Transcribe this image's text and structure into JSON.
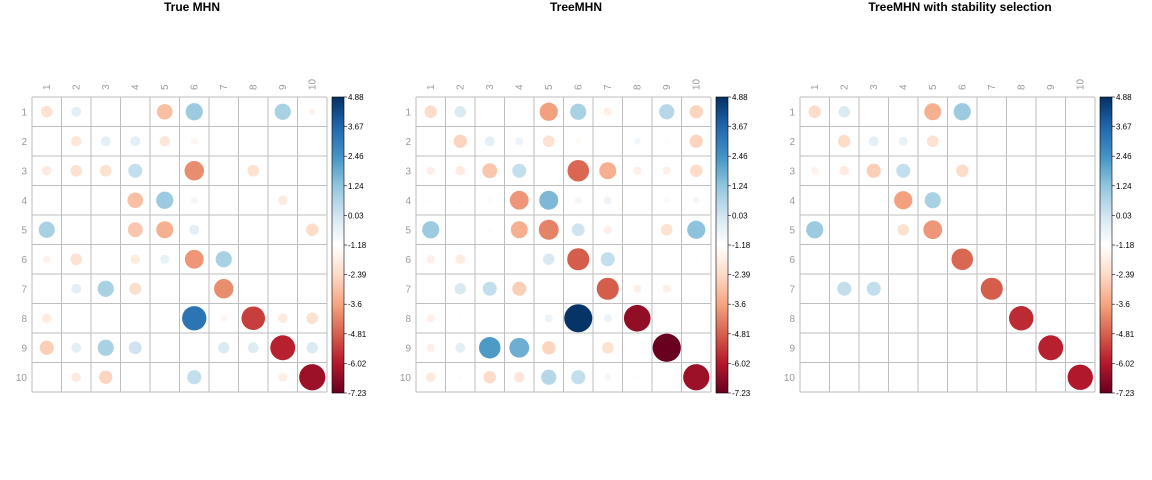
{
  "chart_data": [
    {
      "type": "heatmap",
      "subtype": "correlation-circle-plot",
      "title": "True MHN",
      "row_labels": [
        "1",
        "2",
        "3",
        "4",
        "5",
        "6",
        "7",
        "8",
        "9",
        "10"
      ],
      "col_labels": [
        "1",
        "2",
        "3",
        "4",
        "5",
        "6",
        "7",
        "8",
        "9",
        "10"
      ],
      "colorbar_ticks": [
        "4.88",
        "3.67",
        "2.46",
        "1.24",
        "0.03",
        "-1.18",
        "-2.39",
        "-3.6",
        "-4.81",
        "-6.02",
        "-7.23"
      ],
      "value_range": [
        -7.23,
        4.88
      ],
      "values": [
        [
          -1.2,
          0.6,
          0,
          0,
          -2.2,
          1.8,
          0,
          0,
          1.6,
          -0.4
        ],
        [
          0,
          -1.0,
          0.6,
          0.6,
          -1.0,
          -0.4,
          0,
          0,
          0,
          0
        ],
        [
          -0.8,
          -1.2,
          -1.2,
          1.2,
          0,
          -3.4,
          0,
          -1.2,
          0,
          0
        ],
        [
          0,
          0,
          0,
          -2.2,
          1.8,
          0.3,
          0,
          0,
          -0.8,
          0
        ],
        [
          1.6,
          0,
          0,
          -2.0,
          -2.6,
          0.6,
          0,
          0,
          0,
          -1.4
        ],
        [
          -0.5,
          -1.2,
          0,
          -0.8,
          0.5,
          -3.2,
          1.6,
          0,
          0,
          0
        ],
        [
          0,
          0.6,
          1.6,
          -1.3,
          0,
          0,
          -3.4,
          0,
          0,
          0
        ],
        [
          -0.8,
          0,
          0,
          0,
          0,
          3.6,
          -0.4,
          -5.0,
          -0.8,
          -1.2
        ],
        [
          -1.8,
          0.6,
          1.6,
          1.0,
          0,
          0,
          0.8,
          0.7,
          -5.6,
          0.8
        ],
        [
          0,
          -0.8,
          -1.6,
          0,
          0,
          1.2,
          0,
          0,
          -0.7,
          -6.2
        ]
      ]
    },
    {
      "type": "heatmap",
      "subtype": "correlation-circle-plot",
      "title": "TreeMHN",
      "row_labels": [
        "1",
        "2",
        "3",
        "4",
        "5",
        "6",
        "7",
        "8",
        "9",
        "10"
      ],
      "col_labels": [
        "1",
        "2",
        "3",
        "4",
        "5",
        "6",
        "7",
        "8",
        "9",
        "10"
      ],
      "colorbar_ticks": [
        "4.88",
        "3.67",
        "2.46",
        "1.24",
        "0.03",
        "-1.18",
        "-2.39",
        "-3.6",
        "-4.81",
        "-6.02",
        "-7.23"
      ],
      "value_range": [
        -7.23,
        4.88
      ],
      "values": [
        [
          -1.4,
          0.8,
          -0.1,
          0,
          -3.0,
          1.6,
          -0.6,
          -0.1,
          1.4,
          -1.6
        ],
        [
          0,
          -1.6,
          0.6,
          0.4,
          -1.2,
          -0.3,
          0,
          0.3,
          0.1,
          -1.6
        ],
        [
          -0.6,
          -0.8,
          -2.0,
          1.2,
          0,
          -4.2,
          -2.6,
          -0.6,
          -0.6,
          -1.4
        ],
        [
          0.1,
          0.1,
          -0.2,
          -3.2,
          2.2,
          0.3,
          0.4,
          0,
          -0.3,
          0.3
        ],
        [
          1.8,
          0,
          0.1,
          -2.6,
          -3.6,
          1.0,
          -0.6,
          -0.1,
          -1.2,
          2.0
        ],
        [
          -0.6,
          -0.8,
          0,
          -0.1,
          0.8,
          -4.4,
          1.2,
          0,
          0,
          0.1
        ],
        [
          0,
          0.8,
          1.2,
          -1.8,
          0,
          0,
          -4.4,
          -0.6,
          -0.6,
          0
        ],
        [
          -0.6,
          -0.1,
          0,
          0,
          0.4,
          4.8,
          0.4,
          -6.4,
          0,
          0
        ],
        [
          -0.6,
          0.6,
          2.8,
          2.4,
          -1.6,
          0,
          -1.2,
          0,
          -7.2,
          0
        ],
        [
          -0.8,
          0.1,
          -1.4,
          -1.0,
          1.4,
          1.2,
          0.3,
          0.1,
          0,
          -6.2
        ]
      ]
    },
    {
      "type": "heatmap",
      "subtype": "correlation-circle-plot",
      "title": "TreeMHN with stability selection",
      "row_labels": [
        "1",
        "2",
        "3",
        "4",
        "5",
        "6",
        "7",
        "8",
        "9",
        "10"
      ],
      "col_labels": [
        "1",
        "2",
        "3",
        "4",
        "5",
        "6",
        "7",
        "8",
        "9",
        "10"
      ],
      "colorbar_ticks": [
        "4.88",
        "3.67",
        "2.46",
        "1.24",
        "0.03",
        "-1.18",
        "-2.39",
        "-3.6",
        "-4.81",
        "-6.02",
        "-7.23"
      ],
      "value_range": [
        -7.23,
        4.88
      ],
      "values": [
        [
          -1.4,
          0.8,
          0,
          0,
          -2.6,
          1.8,
          0,
          0,
          0,
          0
        ],
        [
          0,
          -1.4,
          0.6,
          0.5,
          -1.2,
          0,
          0,
          0,
          0,
          0
        ],
        [
          -0.5,
          -0.8,
          -1.8,
          1.2,
          0,
          -1.4,
          0,
          0,
          0,
          0
        ],
        [
          0,
          0,
          0,
          -3.0,
          1.6,
          0,
          0,
          0,
          0,
          0
        ],
        [
          1.8,
          0,
          0,
          -1.2,
          -3.2,
          0,
          0,
          0,
          0,
          0
        ],
        [
          0,
          0,
          0,
          0,
          0,
          -4.2,
          0,
          0,
          0,
          0
        ],
        [
          0,
          1.2,
          1.2,
          0,
          0,
          0,
          -4.4,
          0,
          0,
          0
        ],
        [
          0,
          0,
          0,
          0,
          0,
          0,
          0,
          -5.4,
          0,
          0
        ],
        [
          0,
          0,
          0,
          0,
          0,
          0,
          0,
          0,
          -5.6,
          0
        ],
        [
          0,
          0,
          0,
          0,
          0,
          0,
          0,
          0,
          0,
          -5.8
        ]
      ]
    }
  ]
}
